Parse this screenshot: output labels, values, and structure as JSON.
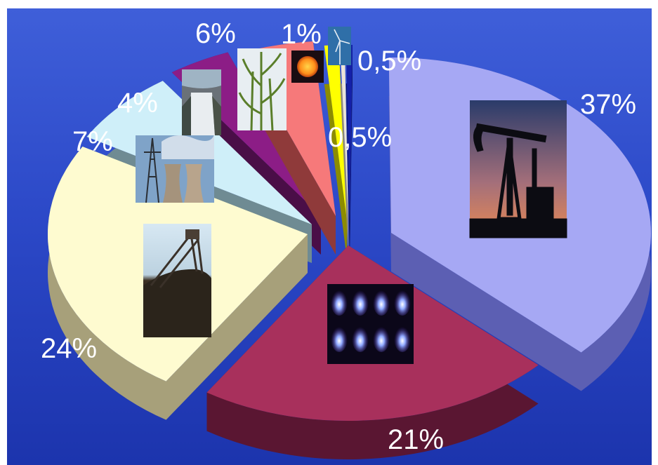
{
  "chart_data": {
    "type": "pie",
    "title": "",
    "labels": [
      "37%",
      "21%",
      "24%",
      "7%",
      "4%",
      "6%",
      "1%",
      "0,5%",
      "0,5%"
    ],
    "icons": [
      "oil-pump-icon",
      "gas-flame-icon",
      "coal-mine-icon",
      "nuclear-plant-icon",
      "hydro-dam-icon",
      "biomass-plant-icon",
      "sun-icon",
      "wind-turbine-icon",
      ""
    ],
    "values": [
      37,
      21,
      24,
      7,
      4,
      6,
      1,
      0.5,
      0.5
    ],
    "colors": [
      "#a6a8f4",
      "#a8305c",
      "#fefbd0",
      "#cfeff9",
      "#8c1d86",
      "#f6797a",
      "#ffff00",
      "#ebe4d8",
      "#1420a8"
    ],
    "side_colors": [
      "#5c5fb3",
      "#5a1632",
      "#a7a07a",
      "#6f8b93",
      "#4a0e47",
      "#8f3a3a",
      "#8c8c00",
      "#8c887d",
      "#0a1066"
    ],
    "background": "#2c49c8",
    "legend": "none",
    "style": "exploded-3d"
  }
}
